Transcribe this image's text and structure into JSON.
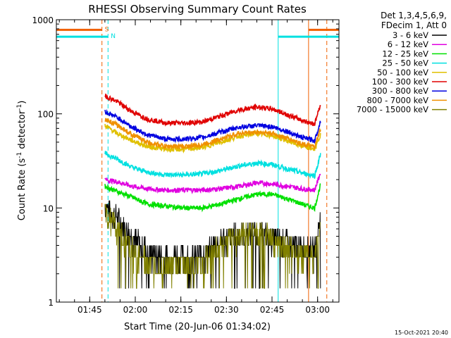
{
  "chart_data": {
    "type": "line",
    "title": "RHESSI Observing Summary Count Rates",
    "xlabel": "Start Time (20-Jun-06 01:34:02)",
    "ylabel_main": "Count Rate (s",
    "ylabel_sup1": "-1",
    "ylabel_mid": " detector",
    "ylabel_sup2": "-1",
    "ylabel_end": ")",
    "yscale": "log",
    "ylim": [
      1,
      1000
    ],
    "xlim_minutes": [
      0,
      93
    ],
    "x_ticks": [
      {
        "label": "01:45",
        "minutes": 10.97
      },
      {
        "label": "02:00",
        "minutes": 25.97
      },
      {
        "label": "02:15",
        "minutes": 40.97
      },
      {
        "label": "02:30",
        "minutes": 55.97
      },
      {
        "label": "02:45",
        "minutes": 70.97
      },
      {
        "label": "03:00",
        "minutes": 85.97
      }
    ],
    "y_ticks": [
      {
        "label": "1",
        "value": 1
      },
      {
        "label": "10",
        "value": 10
      },
      {
        "label": "100",
        "value": 100
      },
      {
        "label": "1000",
        "value": 1000
      }
    ],
    "legend_header": [
      "Det 1,3,4,5,6,9,",
      "FDecim 1, Att 0"
    ],
    "legend_placement": "right",
    "series": [
      {
        "name": "3 - 6 keV",
        "color": "#000000",
        "x": [
          16,
          18,
          20,
          23,
          26,
          30,
          36,
          42,
          46,
          50,
          54,
          58,
          63,
          67,
          70,
          74,
          78,
          83,
          85,
          87
        ],
        "y": [
          11,
          9,
          8,
          6,
          4.5,
          3.5,
          3,
          3,
          3,
          3.5,
          4.5,
          5,
          5.5,
          5.5,
          5,
          4.5,
          4,
          3.5,
          3.5,
          9
        ]
      },
      {
        "name": "6 - 12 keV",
        "color": "#e000e0",
        "x": [
          16,
          20,
          25,
          30,
          36,
          42,
          48,
          54,
          60,
          66,
          71,
          76,
          81,
          85,
          87
        ],
        "y": [
          20,
          19,
          17,
          16,
          15.5,
          15.5,
          15.5,
          16,
          17,
          18.5,
          18,
          17,
          16,
          15.5,
          24
        ]
      },
      {
        "name": "12 - 25 keV",
        "color": "#00e000",
        "x": [
          16,
          20,
          25,
          30,
          36,
          42,
          48,
          54,
          60,
          66,
          71,
          76,
          81,
          85,
          87
        ],
        "y": [
          17,
          15,
          13,
          11,
          10.5,
          10,
          10,
          11,
          12.5,
          14,
          14,
          12.5,
          11,
          10,
          18
        ]
      },
      {
        "name": "25 - 50 keV",
        "color": "#00e0e0",
        "x": [
          16,
          20,
          25,
          30,
          36,
          42,
          48,
          54,
          60,
          66,
          71,
          76,
          81,
          85,
          87
        ],
        "y": [
          38,
          33,
          27,
          24,
          22.5,
          22.5,
          23,
          25,
          28,
          30,
          29,
          26,
          23.5,
          22,
          38
        ]
      },
      {
        "name": "50 - 100 keV",
        "color": "#e0c000",
        "x": [
          16,
          20,
          25,
          30,
          36,
          42,
          48,
          54,
          60,
          66,
          71,
          76,
          81,
          85,
          87
        ],
        "y": [
          75,
          62,
          52,
          45,
          42,
          42,
          44,
          50,
          58,
          62,
          59,
          52,
          45,
          42,
          60
        ]
      },
      {
        "name": "100 - 300 keV",
        "color": "#e00000",
        "x": [
          16,
          20,
          25,
          30,
          36,
          42,
          48,
          54,
          60,
          66,
          71,
          76,
          81,
          85,
          87
        ],
        "y": [
          155,
          135,
          105,
          88,
          80,
          80,
          82,
          95,
          110,
          118,
          113,
          98,
          85,
          78,
          130
        ]
      },
      {
        "name": "300 - 800 keV",
        "color": "#0000e0",
        "x": [
          16,
          20,
          25,
          30,
          36,
          42,
          48,
          54,
          60,
          66,
          71,
          76,
          81,
          85,
          87
        ],
        "y": [
          105,
          92,
          72,
          60,
          54,
          54,
          56,
          64,
          72,
          75,
          73,
          65,
          56,
          52,
          85
        ]
      },
      {
        "name": "800 - 7000 keV",
        "color": "#f09000",
        "x": [
          16,
          20,
          25,
          30,
          36,
          42,
          48,
          54,
          60,
          66,
          71,
          76,
          81,
          85,
          87
        ],
        "y": [
          88,
          76,
          60,
          50,
          45,
          45,
          47,
          54,
          62,
          64,
          62,
          55,
          48,
          44,
          70
        ]
      },
      {
        "name": "7000 - 15000 keV",
        "color": "#808000",
        "x": [
          16,
          18,
          21,
          24,
          27,
          31,
          36,
          42,
          46,
          50,
          54,
          58,
          63,
          67,
          70,
          74,
          78,
          83,
          85,
          87
        ],
        "y": [
          9,
          7.5,
          5.5,
          4,
          3,
          2.5,
          2.5,
          2.5,
          2.5,
          3,
          4,
          5,
          5.5,
          5.5,
          5,
          4,
          3.5,
          3,
          3,
          6
        ]
      }
    ],
    "flag_lines": [
      {
        "label": "S",
        "color": "#f06000",
        "x_start": 0,
        "x_end": 15,
        "value": 780
      },
      {
        "label": "S",
        "color": "#f06000",
        "x_start": 83,
        "x_end": 93,
        "value": 780
      },
      {
        "label": "N",
        "color": "#00e0e0",
        "x_start": 0,
        "x_end": 17,
        "value": 660
      },
      {
        "label": "N",
        "color": "#00e0e0",
        "x_start": 73,
        "x_end": 93,
        "value": 660
      }
    ],
    "vertical_markers": [
      {
        "minutes": 0,
        "color": "#00e0e0",
        "style": "solid"
      },
      {
        "minutes": 15,
        "color": "#f06000",
        "style": "dashed"
      },
      {
        "minutes": 17,
        "color": "#00e0e0",
        "style": "dashed"
      },
      {
        "minutes": 73,
        "color": "#00e0e0",
        "style": "solid"
      },
      {
        "minutes": 83,
        "color": "#f06000",
        "style": "solid"
      },
      {
        "minutes": 89,
        "color": "#f06000",
        "style": "dashed"
      }
    ],
    "footer_date": "15-Oct-2021 20:40"
  }
}
